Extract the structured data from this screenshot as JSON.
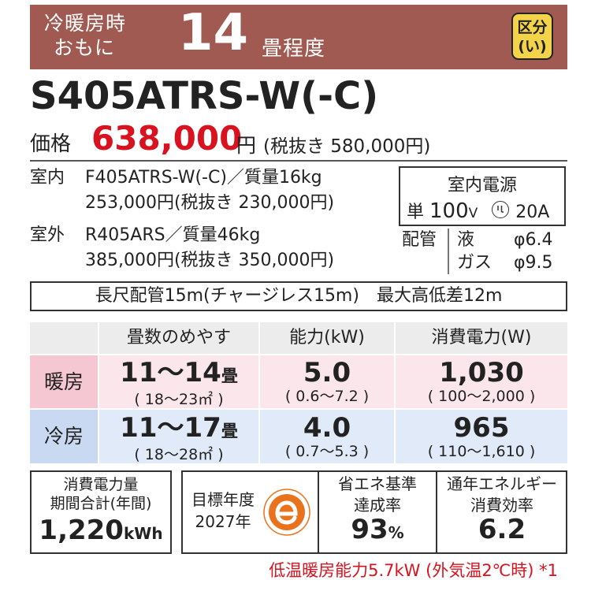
{
  "header": {
    "line1": "冷暖房時",
    "line2": "おもに",
    "size_number": "14",
    "size_unit": "畳程度",
    "badge_line1": "区分",
    "badge_line2": "(い)",
    "colors": {
      "banner": "#a15a52",
      "badge": "#f3d34a",
      "accent_red": "#d8121f"
    }
  },
  "model": "S405ATRS-W(-C)",
  "price": {
    "label": "価格",
    "value": "638,000",
    "yen": "円",
    "tax_excluded": "(税抜き 580,000円)"
  },
  "indoor": {
    "label": "室内",
    "line1": "F405ATRS-W(-C)／質量16kg",
    "line2": "253,000円(税抜き 230,000円)"
  },
  "outdoor": {
    "label": "室外",
    "line1": "R405ARS／質量46kg",
    "line2": "385,000円(税抜き 350,000円)"
  },
  "power_source": {
    "title": "室内電源",
    "single": "単",
    "voltage": "100",
    "voltage_unit": "V",
    "amp": "20A"
  },
  "piping": {
    "label": "配管",
    "liquid_label": "液",
    "liquid_value": "φ6.4",
    "gas_label": "ガス",
    "gas_value": "φ9.5"
  },
  "long_piping": "長尺配管15m(チャージレス15m)　最大高低差12m",
  "spec_table": {
    "headers": [
      "畳数のめやす",
      "能力(kW)",
      "消費電力(W)"
    ],
    "rows": [
      {
        "label": "暖房",
        "tatami_main": "11～14",
        "tatami_unit": "畳",
        "tatami_range": "( 18～23㎡ )",
        "capacity": "5.0",
        "capacity_range": "( 0.6～7.2 )",
        "power": "1,030",
        "power_range": "( 100～2,000 )"
      },
      {
        "label": "冷房",
        "tatami_main": "11～17",
        "tatami_unit": "畳",
        "tatami_range": "( 18～28㎡ )",
        "capacity": "4.0",
        "capacity_range": "( 0.7～5.3 )",
        "power": "965",
        "power_range": "( 110～1,610 )"
      }
    ]
  },
  "annual_power": {
    "line1": "消費電力量",
    "line2": "期間合計(年間)",
    "value": "1,220",
    "unit": "kWh"
  },
  "target_year": {
    "line1": "目標年度",
    "line2": "2027年",
    "icon": "e-mark"
  },
  "achievement": {
    "line1": "省エネ基準",
    "line2": "達成率",
    "value": "93",
    "unit": "%"
  },
  "apf": {
    "line1": "通年エネルギー",
    "line2": "消費効率",
    "value": "6.2"
  },
  "footnote": "低温暖房能力5.7kW (外気温2℃時) *1"
}
